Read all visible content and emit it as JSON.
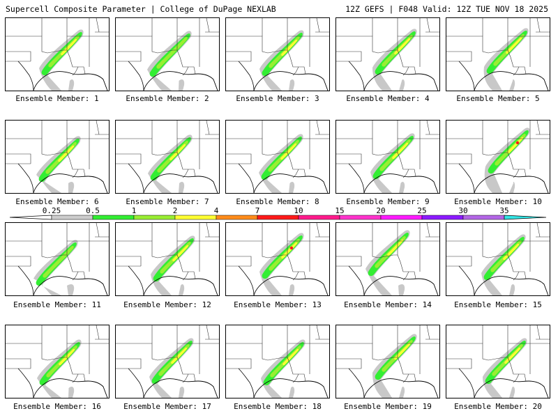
{
  "header": {
    "title_left": "Supercell Composite Parameter | College of DuPage NEXLAB",
    "title_right": "12Z GEFS | F048 Valid: 12Z TUE NOV 18 2025"
  },
  "member_label_prefix": "Ensemble Member:",
  "members": [
    {
      "label": "Ensemble Member: 1",
      "number": 1,
      "max_category": "4"
    },
    {
      "label": "Ensemble Member: 2",
      "number": 2,
      "max_category": "2"
    },
    {
      "label": "Ensemble Member: 3",
      "number": 3,
      "max_category": "4"
    },
    {
      "label": "Ensemble Member: 4",
      "number": 4,
      "max_category": "4"
    },
    {
      "label": "Ensemble Member: 5",
      "number": 5,
      "max_category": "4"
    },
    {
      "label": "Ensemble Member: 6",
      "number": 6,
      "max_category": "4"
    },
    {
      "label": "Ensemble Member: 7",
      "number": 7,
      "max_category": "4"
    },
    {
      "label": "Ensemble Member: 8",
      "number": 8,
      "max_category": "4"
    },
    {
      "label": "Ensemble Member: 9",
      "number": 9,
      "max_category": "4"
    },
    {
      "label": "Ensemble Member: 10",
      "number": 10,
      "max_category": "10"
    },
    {
      "label": "Ensemble Member: 11",
      "number": 11,
      "max_category": "2"
    },
    {
      "label": "Ensemble Member: 12",
      "number": 12,
      "max_category": "4"
    },
    {
      "label": "Ensemble Member: 13",
      "number": 13,
      "max_category": "10"
    },
    {
      "label": "Ensemble Member: 14",
      "number": 14,
      "max_category": "4"
    },
    {
      "label": "Ensemble Member: 15",
      "number": 15,
      "max_category": "4"
    },
    {
      "label": "Ensemble Member: 16",
      "number": 16,
      "max_category": "4"
    },
    {
      "label": "Ensemble Member: 17",
      "number": 17,
      "max_category": "4"
    },
    {
      "label": "Ensemble Member: 18",
      "number": 18,
      "max_category": "4"
    },
    {
      "label": "Ensemble Member: 19",
      "number": 19,
      "max_category": "4"
    },
    {
      "label": "Ensemble Member: 20",
      "number": 20,
      "max_category": "4"
    }
  ],
  "colorbar": {
    "ticks": [
      "0.25",
      "0.5",
      "1",
      "2",
      "4",
      "7",
      "10",
      "15",
      "20",
      "25",
      "30",
      "35"
    ],
    "colors": [
      "#ffffff",
      "#cccccc",
      "#33ee33",
      "#99ee33",
      "#ffff33",
      "#ff8c1a",
      "#ff1a1a",
      "#ff1a8c",
      "#ff33cc",
      "#ff1aff",
      "#8c1aff",
      "#b366e6",
      "#33e6e6"
    ]
  },
  "shading_colors": {
    "gray": "#c8c8c8",
    "green": "#33ee33",
    "light_green": "#99ee33",
    "yellow": "#ffff33",
    "red": "#ff1a1a"
  }
}
